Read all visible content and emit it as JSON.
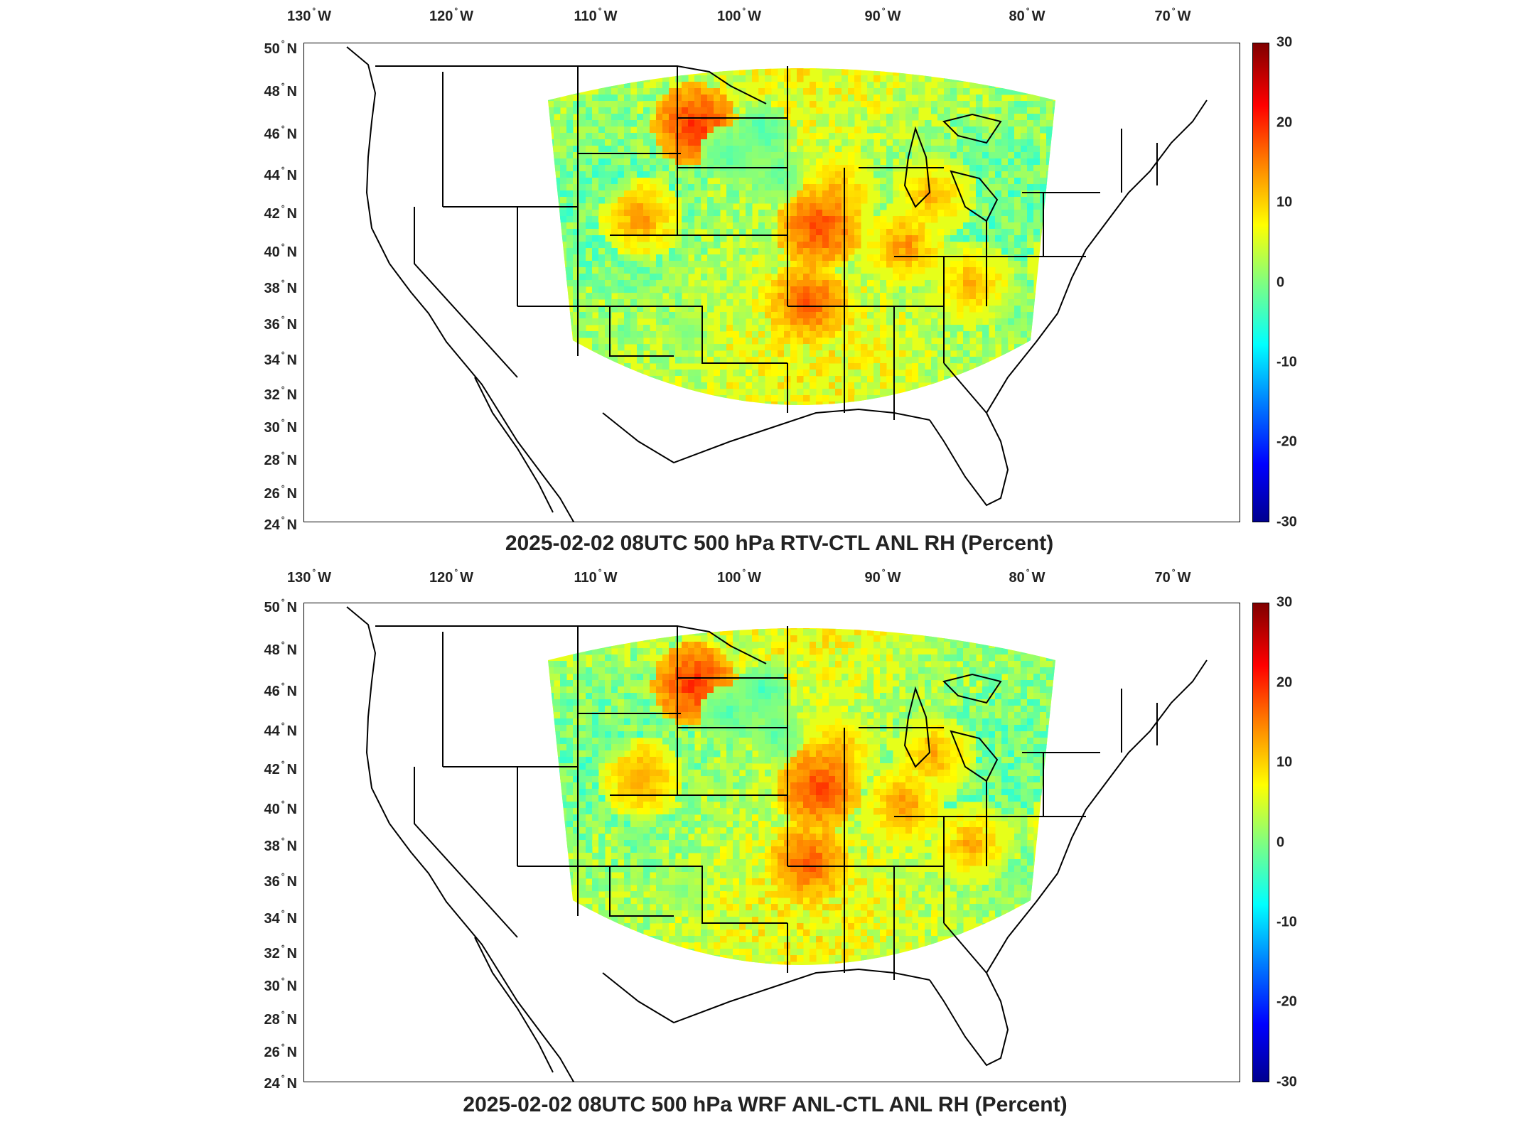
{
  "colors": {
    "colormap": [
      "#00008f",
      "#0000ff",
      "#0080ff",
      "#00ffff",
      "#80ff80",
      "#ffff00",
      "#ff8000",
      "#ff0000",
      "#800000"
    ],
    "land_outline": "#000000",
    "ocean_blank": "#ffffff"
  },
  "panels": [
    {
      "id": "top",
      "title": "2025-02-02 08UTC 500 hPa RTV-CTL ANL RH (Percent)",
      "longitude_labels": [
        "130",
        "120",
        "110",
        "100",
        "90",
        "80",
        "70"
      ],
      "longitude_suffix": "W",
      "latitude_labels": [
        "50",
        "48",
        "46",
        "44",
        "42",
        "40",
        "38",
        "36",
        "34",
        "32",
        "30",
        "28",
        "26",
        "24"
      ],
      "latitude_suffix": "N",
      "colorbar_ticks": [
        "30",
        "20",
        "10",
        "0",
        "-10",
        "-20",
        "-30"
      ],
      "colorbar_range": [
        -30,
        30
      ]
    },
    {
      "id": "bottom",
      "title": "2025-02-02 08UTC 500 hPa WRF ANL-CTL ANL RH (Percent)",
      "longitude_labels": [
        "130",
        "120",
        "110",
        "100",
        "90",
        "80",
        "70"
      ],
      "longitude_suffix": "W",
      "latitude_labels": [
        "50",
        "48",
        "46",
        "44",
        "42",
        "40",
        "38",
        "36",
        "34",
        "32",
        "30",
        "28",
        "26",
        "24"
      ],
      "latitude_suffix": "N",
      "colorbar_ticks": [
        "30",
        "20",
        "10",
        "0",
        "-10",
        "-20",
        "-30"
      ],
      "colorbar_range": [
        -30,
        30
      ]
    }
  ]
}
